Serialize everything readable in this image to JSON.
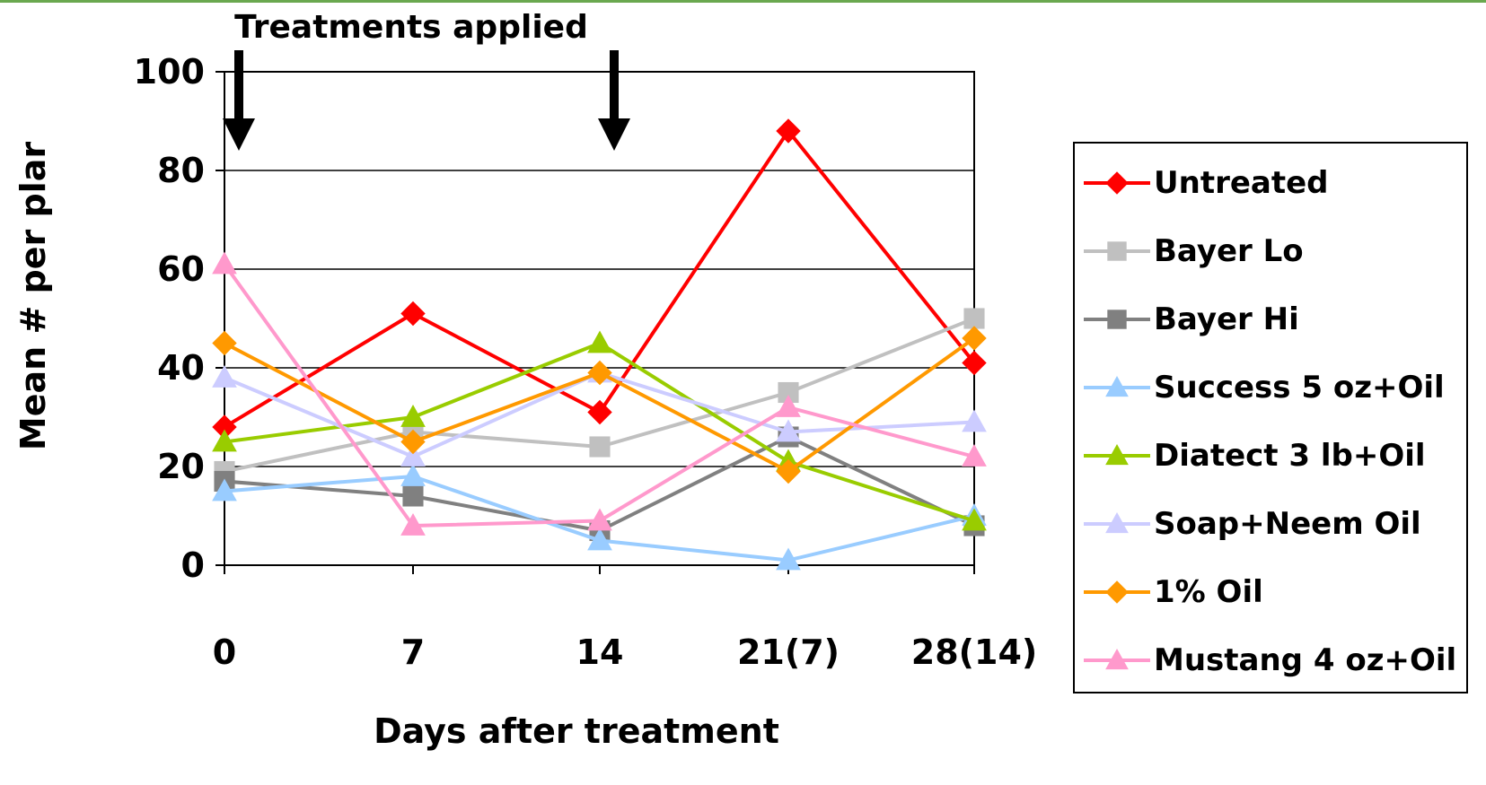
{
  "chart_data": {
    "type": "line",
    "annotation": "Treatments applied",
    "categories": [
      "0",
      "7",
      "14",
      "21(7)",
      "28(14)"
    ],
    "xlabel": "Days after treatment",
    "ylabel": "Mean # per plar",
    "ylim": [
      0,
      100
    ],
    "yticks": [
      "0",
      "20",
      "40",
      "60",
      "80",
      "100"
    ],
    "grid": true,
    "legend_position": "right",
    "arrows_at": [
      "0",
      "14"
    ],
    "series": [
      {
        "name": "Untreated",
        "color": "#ff0000",
        "marker": "diamond",
        "values": [
          28,
          51,
          31,
          88,
          41
        ]
      },
      {
        "name": "Bayer Lo",
        "color": "#c0c0c0",
        "marker": "square",
        "values": [
          19,
          27,
          24,
          35,
          50
        ]
      },
      {
        "name": "Bayer Hi",
        "color": "#808080",
        "marker": "square",
        "values": [
          17,
          14,
          7,
          26,
          8
        ]
      },
      {
        "name": "Success 5 oz+Oil",
        "color": "#99ccff",
        "marker": "triangle",
        "values": [
          15,
          18,
          5,
          1,
          10
        ]
      },
      {
        "name": "Diatect 3 lb+Oil",
        "color": "#99cc00",
        "marker": "triangle",
        "values": [
          25,
          30,
          45,
          21,
          9
        ]
      },
      {
        "name": "Soap+Neem Oil",
        "color": "#ccccff",
        "marker": "triangle",
        "values": [
          38,
          22,
          39,
          27,
          29
        ]
      },
      {
        "name": "1% Oil",
        "color": "#ff9900",
        "marker": "diamond",
        "values": [
          45,
          25,
          39,
          19,
          46
        ]
      },
      {
        "name": "Mustang 4 oz+Oil",
        "color": "#ff99cc",
        "marker": "triangle",
        "values": [
          61,
          8,
          9,
          32,
          22
        ]
      }
    ]
  },
  "colors": {
    "top_bar": "#6aa84f"
  }
}
